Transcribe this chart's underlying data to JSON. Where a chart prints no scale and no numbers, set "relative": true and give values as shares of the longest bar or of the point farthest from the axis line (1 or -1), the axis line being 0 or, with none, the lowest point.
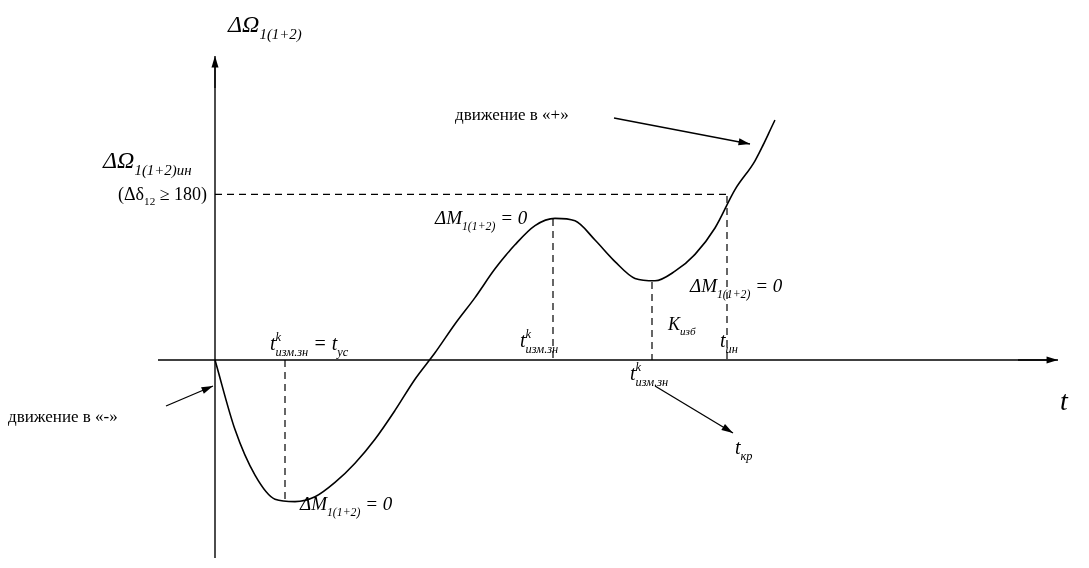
{
  "chart_data": {
    "type": "line",
    "relative": true,
    "ylabel": "ΔΩ$_{1(1+2)}$",
    "categories": [
      null,
      null,
      null,
      null,
      null,
      null,
      null,
      null,
      null,
      null,
      null,
      null,
      null,
      null,
      null,
      null,
      null,
      null,
      null,
      null,
      null,
      null,
      null,
      null,
      null,
      null,
      null,
      null,
      null
    ],
    "series": [
      {
        "color": "#000000",
        "values": [
          0,
          -0.29,
          -0.48,
          -0.58,
          -0.59,
          -0.57,
          -0.51,
          -0.43,
          -0.33,
          -0.21,
          -0.08,
          0.03,
          0.15,
          0.26,
          0.38,
          0.48,
          0.56,
          0.59,
          0.58,
          0.5,
          0.41,
          0.34,
          0.33,
          0.37,
          0.44,
          0.55,
          0.71,
          0.83,
          1
        ]
      }
    ],
    "ref_lines": [
      {
        "axis": "y",
        "value": 0.69,
        "line_style": "dashed",
        "color": "#000000"
      }
    ],
    "annotations": [
      "ΔΩ$_{1(1+2)ин}$",
      "(Δδ$_{12}$ ≥ 180)",
      "движение в «+»",
      "движение в «-»",
      "ΔM$_{1(1+2)}$ = 0",
      "ΔM$_{1(1+2)}$ = 0",
      "ΔM$_{1(1+2)}$ = 0",
      "t$^{k}$$_{изм.зн}$ = t$_{ус}$",
      "t$^{k}$$_{изм.зн}$",
      "K$_{изб}$",
      "t$^{k}$$_{изм.зн}$",
      "t$_{ин}$",
      "t$_{кр}$",
      "t"
    ],
    "legend": false,
    "marker": "none",
    "line_style": "solid"
  }
}
